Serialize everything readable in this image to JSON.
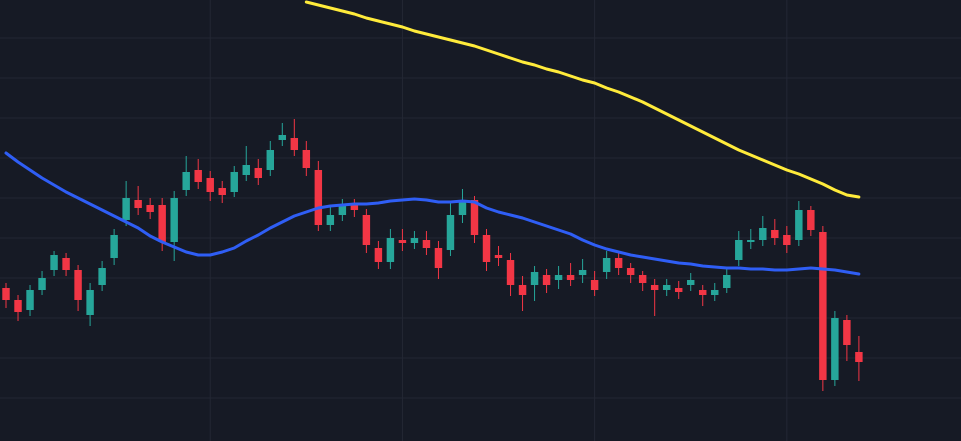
{
  "chart_data": {
    "type": "candlestick",
    "xlim": [
      -0.5,
      79.5
    ],
    "xticks": [
      17,
      33,
      49,
      65
    ],
    "ylim": [
      0,
      441
    ],
    "yticks": [
      43,
      83,
      123,
      163,
      203,
      243,
      283,
      323,
      363,
      403
    ],
    "grid": true,
    "background": "#161a25",
    "grid_color": "#232734",
    "up_color": "#26a69a",
    "down_color": "#f23645",
    "open": [
      153,
      141,
      131,
      151,
      171,
      183,
      171,
      126,
      156,
      183,
      221,
      241,
      236,
      236,
      199,
      251,
      271,
      263,
      253,
      249,
      266,
      273,
      271,
      301,
      303,
      291,
      271,
      216,
      226,
      236,
      226,
      193,
      179,
      201,
      198,
      201,
      193,
      191,
      226,
      241,
      206,
      186,
      181,
      156,
      156,
      166,
      161,
      166,
      166,
      161,
      169,
      183,
      173,
      166,
      156,
      151,
      153,
      156,
      151,
      146,
      153,
      181,
      199,
      201,
      211,
      206,
      201,
      231,
      209,
      61,
      121,
      89
    ],
    "high": [
      158,
      146,
      156,
      170,
      190,
      188,
      176,
      158,
      180,
      212,
      260,
      255,
      243,
      243,
      250,
      285,
      282,
      270,
      260,
      275,
      295,
      282,
      300,
      318,
      322,
      300,
      280,
      236,
      242,
      242,
      232,
      200,
      212,
      212,
      210,
      210,
      200,
      240,
      252,
      245,
      212,
      195,
      188,
      165,
      175,
      172,
      175,
      178,
      182,
      170,
      190,
      188,
      178,
      170,
      162,
      162,
      160,
      168,
      156,
      158,
      172,
      210,
      212,
      225,
      222,
      215,
      240,
      235,
      215,
      130,
      126,
      105
    ],
    "low": [
      133,
      120,
      125,
      146,
      165,
      165,
      130,
      115,
      150,
      176,
      215,
      226,
      222,
      190,
      180,
      245,
      252,
      240,
      238,
      244,
      260,
      256,
      265,
      295,
      285,
      265,
      210,
      210,
      220,
      224,
      188,
      172,
      172,
      190,
      192,
      186,
      162,
      185,
      218,
      198,
      170,
      175,
      145,
      130,
      140,
      148,
      152,
      155,
      158,
      145,
      162,
      166,
      158,
      150,
      125,
      145,
      142,
      150,
      135,
      140,
      148,
      175,
      192,
      195,
      196,
      188,
      195,
      205,
      50,
      55,
      80,
      60
    ],
    "close": [
      141,
      129,
      151,
      163,
      186,
      171,
      141,
      151,
      173,
      206,
      243,
      233,
      229,
      199,
      243,
      269,
      259,
      249,
      246,
      269,
      276,
      263,
      291,
      306,
      291,
      273,
      216,
      226,
      236,
      231,
      196,
      179,
      203,
      198,
      203,
      193,
      173,
      226,
      241,
      206,
      179,
      183,
      156,
      146,
      169,
      156,
      166,
      161,
      171,
      151,
      183,
      173,
      166,
      158,
      151,
      156,
      149,
      161,
      146,
      151,
      166,
      201,
      201,
      213,
      203,
      196,
      231,
      211,
      61,
      123,
      96,
      79
    ],
    "series": [
      {
        "color": "#2f5ef5",
        "values": [
          288,
          279,
          271,
          263,
          256,
          249,
          243,
          237,
          231,
          225,
          219,
          213,
          205,
          199,
          194,
          189,
          186,
          186,
          189,
          193,
          200,
          206,
          213,
          219,
          225,
          229,
          233,
          235,
          236,
          237,
          237,
          238,
          240,
          241,
          242,
          241,
          239,
          239,
          240,
          239,
          233,
          229,
          226,
          223,
          219,
          215,
          211,
          207,
          201,
          196,
          192,
          189,
          186,
          184,
          182,
          180,
          178,
          177,
          175,
          174,
          173,
          173,
          172,
          172,
          171,
          171,
          172,
          173,
          172,
          171,
          169,
          167
        ]
      },
      {
        "color": "#ffeb3b",
        "values": [
          null,
          null,
          null,
          null,
          null,
          null,
          null,
          null,
          null,
          null,
          null,
          null,
          null,
          null,
          null,
          null,
          null,
          null,
          null,
          null,
          null,
          null,
          null,
          null,
          null,
          439,
          436,
          433,
          430,
          427,
          423,
          420,
          417,
          414,
          410,
          407,
          404,
          401,
          398,
          395,
          391,
          387,
          383,
          379,
          376,
          372,
          369,
          365,
          361,
          358,
          353,
          349,
          344,
          339,
          333,
          327,
          321,
          315,
          309,
          303,
          297,
          291,
          286,
          281,
          276,
          271,
          267,
          262,
          257,
          251,
          246,
          244
        ]
      }
    ]
  }
}
